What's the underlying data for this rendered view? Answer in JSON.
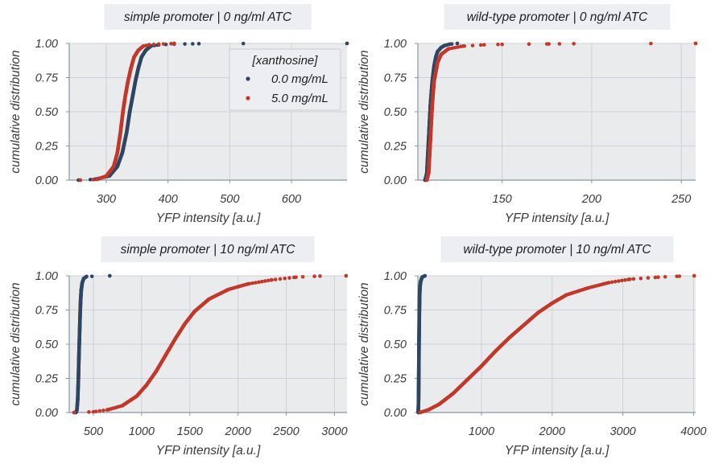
{
  "colors": {
    "panel_bg": "#eaebed",
    "title_bg": "#edeef2",
    "grid": "#d0d1d5",
    "spine": "#8a95a5",
    "series_0": "#2f4662",
    "series_5": "#c1392b"
  },
  "legend": {
    "title": "[xanthosine]",
    "placement": "top-right",
    "entries": [
      "0.0 mg/mL",
      "5.0 mg/mL"
    ]
  },
  "chart_data": [
    {
      "type": "scatter",
      "title": "simple promoter | 0 ng/ml ATC",
      "xlabel": "YFP intensity [a.u.]",
      "ylabel": "cumulative distribution",
      "xlim": [
        240,
        690
      ],
      "ylim": [
        0,
        1
      ],
      "xticks": [
        300,
        400,
        500,
        600
      ],
      "yticks": [
        "0.00",
        "0.25",
        "0.50",
        "0.75",
        "1.00"
      ],
      "grid": true,
      "series": [
        {
          "name": "0.0 mg/mL",
          "color_key": "series_0",
          "x": [
            255,
            280,
            305,
            318,
            326,
            333,
            338,
            343,
            347,
            352,
            357,
            364,
            372,
            385,
            410,
            440,
            450,
            522,
            690
          ],
          "y": [
            0.0,
            0.005,
            0.03,
            0.1,
            0.2,
            0.35,
            0.5,
            0.62,
            0.72,
            0.82,
            0.9,
            0.95,
            0.98,
            0.99,
            0.995,
            0.997,
            0.998,
            0.999,
            1.0
          ]
        },
        {
          "name": "5.0 mg/mL",
          "color_key": "series_5",
          "x": [
            258,
            285,
            300,
            312,
            318,
            323,
            327,
            331,
            335,
            340,
            345,
            352,
            360,
            370,
            385,
            405,
            410
          ],
          "y": [
            0.0,
            0.005,
            0.03,
            0.1,
            0.2,
            0.35,
            0.5,
            0.62,
            0.72,
            0.82,
            0.9,
            0.95,
            0.98,
            0.99,
            0.995,
            0.998,
            1.0
          ]
        }
      ]
    },
    {
      "type": "scatter",
      "title": "wild-type promoter | 0 ng/ml ATC",
      "xlabel": "YFP intensity [a.u.]",
      "ylabel": "cumulative distribution",
      "xlim": [
        103,
        258
      ],
      "ylim": [
        0,
        1
      ],
      "xticks": [
        150,
        200,
        250
      ],
      "yticks": [
        "0.00",
        "0.25",
        "0.50",
        "0.75",
        "1.00"
      ],
      "grid": true,
      "series": [
        {
          "name": "0.0 mg/mL",
          "color_key": "series_0",
          "x": [
            107,
            108,
            109,
            110,
            111,
            112,
            113,
            114,
            116,
            118,
            121,
            125
          ],
          "y": [
            0.0,
            0.05,
            0.3,
            0.55,
            0.72,
            0.83,
            0.9,
            0.94,
            0.97,
            0.985,
            0.995,
            1.0
          ]
        },
        {
          "name": "5.0 mg/mL",
          "color_key": "series_5",
          "x": [
            108,
            109,
            110,
            111,
            112,
            114,
            116,
            120,
            128,
            140,
            150,
            165,
            175,
            182,
            190,
            233,
            258
          ],
          "y": [
            0.0,
            0.05,
            0.3,
            0.55,
            0.72,
            0.86,
            0.92,
            0.96,
            0.98,
            0.99,
            0.993,
            0.995,
            0.996,
            0.997,
            0.998,
            0.999,
            1.0
          ]
        }
      ]
    },
    {
      "type": "scatter",
      "title": "simple promoter | 10 ng/ml ATC",
      "xlabel": "YFP intensity [a.u.]",
      "ylabel": "cumulative distribution",
      "xlim": [
        250,
        3130
      ],
      "ylim": [
        0,
        1
      ],
      "xticks": [
        500,
        1000,
        1500,
        2000,
        2500,
        3000
      ],
      "yticks": [
        "0.00",
        "0.25",
        "0.50",
        "0.75",
        "1.00"
      ],
      "grid": true,
      "series": [
        {
          "name": "0.0 mg/mL",
          "color_key": "series_0",
          "x": [
            320,
            330,
            338,
            345,
            350,
            356,
            362,
            368,
            375,
            385,
            400,
            430,
            670
          ],
          "y": [
            0.0,
            0.02,
            0.1,
            0.25,
            0.4,
            0.55,
            0.7,
            0.82,
            0.9,
            0.95,
            0.98,
            0.995,
            1.0
          ]
        },
        {
          "name": "5.0 mg/mL",
          "color_key": "series_5",
          "x": [
            300,
            500,
            650,
            800,
            950,
            1050,
            1150,
            1250,
            1350,
            1450,
            1550,
            1700,
            1900,
            2100,
            2350,
            2600,
            2850,
            3120
          ],
          "y": [
            0.0,
            0.005,
            0.02,
            0.05,
            0.12,
            0.2,
            0.3,
            0.42,
            0.54,
            0.65,
            0.74,
            0.83,
            0.9,
            0.94,
            0.97,
            0.99,
            0.998,
            1.0
          ]
        }
      ]
    },
    {
      "type": "scatter",
      "title": "wild-type promoter | 10 ng/ml ATC",
      "xlabel": "YFP intensity [a.u.]",
      "ylabel": "cumulative distribution",
      "xlim": [
        100,
        4030
      ],
      "ylim": [
        0,
        1
      ],
      "xticks": [
        1000,
        2000,
        3000,
        4000
      ],
      "yticks": [
        "0.00",
        "0.25",
        "0.50",
        "0.75",
        "1.00"
      ],
      "grid": true,
      "series": [
        {
          "name": "0.0 mg/mL",
          "color_key": "series_0",
          "x": [
            105,
            110,
            113,
            116,
            120,
            125,
            130,
            140,
            160,
            200
          ],
          "y": [
            0.0,
            0.1,
            0.3,
            0.5,
            0.7,
            0.85,
            0.92,
            0.96,
            0.99,
            1.0
          ]
        },
        {
          "name": "5.0 mg/mL",
          "color_key": "series_5",
          "x": [
            130,
            250,
            400,
            600,
            800,
            1000,
            1200,
            1400,
            1600,
            1800,
            2000,
            2200,
            2500,
            2800,
            3100,
            3500,
            3800,
            4010
          ],
          "y": [
            0.0,
            0.02,
            0.06,
            0.14,
            0.24,
            0.34,
            0.45,
            0.55,
            0.64,
            0.73,
            0.8,
            0.86,
            0.91,
            0.95,
            0.975,
            0.99,
            0.997,
            1.0
          ]
        }
      ]
    }
  ]
}
